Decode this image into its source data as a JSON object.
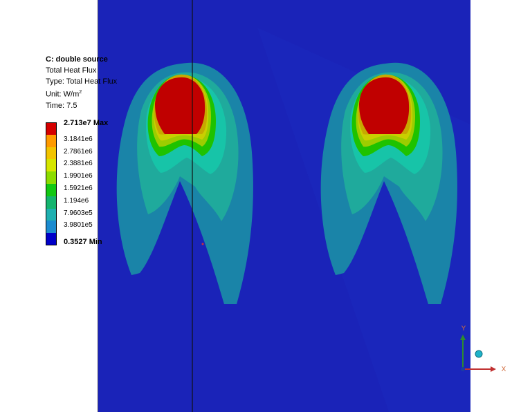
{
  "result": {
    "title": "C: double source",
    "quantity": "Total Heat Flux",
    "type": "Type: Total Heat Flux",
    "unit_prefix": "Unit: W/m",
    "unit_exp": "2",
    "time": "Time: 7.5"
  },
  "legend": {
    "levels": [
      {
        "label": "2.713e7 Max",
        "color": "#d40000"
      },
      {
        "label": "3.1841e6",
        "color": "#ff9a00"
      },
      {
        "label": "2.7861e6",
        "color": "#f2c400"
      },
      {
        "label": "2.3881e6",
        "color": "#d6e600"
      },
      {
        "label": "1.9901e6",
        "color": "#8cdc00"
      },
      {
        "label": "1.5921e6",
        "color": "#12c812"
      },
      {
        "label": "1.194e6",
        "color": "#14b46e"
      },
      {
        "label": "7.9603e5",
        "color": "#1fb0b0"
      },
      {
        "label": "3.9801e5",
        "color": "#1b8bd0"
      },
      {
        "label": "0.3527 Min",
        "color": "#0000c8"
      }
    ]
  },
  "triad": {
    "x_label": "X",
    "y_label": "Y"
  },
  "colors": {
    "background": "#1a23b8",
    "outer": "#1a84a8",
    "mid": "#1faa9c",
    "inner": "#17c4a8",
    "green": "#1ec200",
    "yellowgreen": "#9ccd00",
    "yellow": "#c9cf00",
    "orange": "#c7a800",
    "hot": "#c00000"
  }
}
